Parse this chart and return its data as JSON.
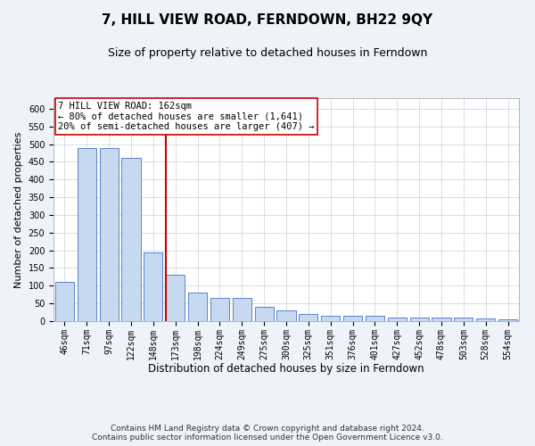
{
  "title": "7, HILL VIEW ROAD, FERNDOWN, BH22 9QY",
  "subtitle": "Size of property relative to detached houses in Ferndown",
  "xlabel": "Distribution of detached houses by size in Ferndown",
  "ylabel": "Number of detached properties",
  "categories": [
    "46sqm",
    "71sqm",
    "97sqm",
    "122sqm",
    "148sqm",
    "173sqm",
    "198sqm",
    "224sqm",
    "249sqm",
    "275sqm",
    "300sqm",
    "325sqm",
    "351sqm",
    "376sqm",
    "401sqm",
    "427sqm",
    "452sqm",
    "478sqm",
    "503sqm",
    "528sqm",
    "554sqm"
  ],
  "values": [
    110,
    490,
    490,
    460,
    195,
    130,
    80,
    65,
    65,
    40,
    30,
    20,
    15,
    15,
    15,
    10,
    10,
    10,
    10,
    8,
    5
  ],
  "bar_color": "#c6d9f0",
  "bar_edge_color": "#4472c4",
  "vline_color": "#cc0000",
  "vline_x_idx": 5,
  "annotation_text_line1": "7 HILL VIEW ROAD: 162sqm",
  "annotation_text_line2": "← 80% of detached houses are smaller (1,641)",
  "annotation_text_line3": "20% of semi-detached houses are larger (407) →",
  "ylim": [
    0,
    630
  ],
  "yticks": [
    0,
    50,
    100,
    150,
    200,
    250,
    300,
    350,
    400,
    450,
    500,
    550,
    600
  ],
  "footnote": "Contains HM Land Registry data © Crown copyright and database right 2024.\nContains public sector information licensed under the Open Government Licence v3.0.",
  "bg_color": "#eef2f9",
  "plot_bg_color": "#ffffff",
  "grid_color": "#c8d0e0",
  "title_fontsize": 11,
  "subtitle_fontsize": 9,
  "xlabel_fontsize": 8.5,
  "ylabel_fontsize": 8,
  "tick_fontsize": 7,
  "annotation_fontsize": 7.5,
  "footnote_fontsize": 6.5
}
